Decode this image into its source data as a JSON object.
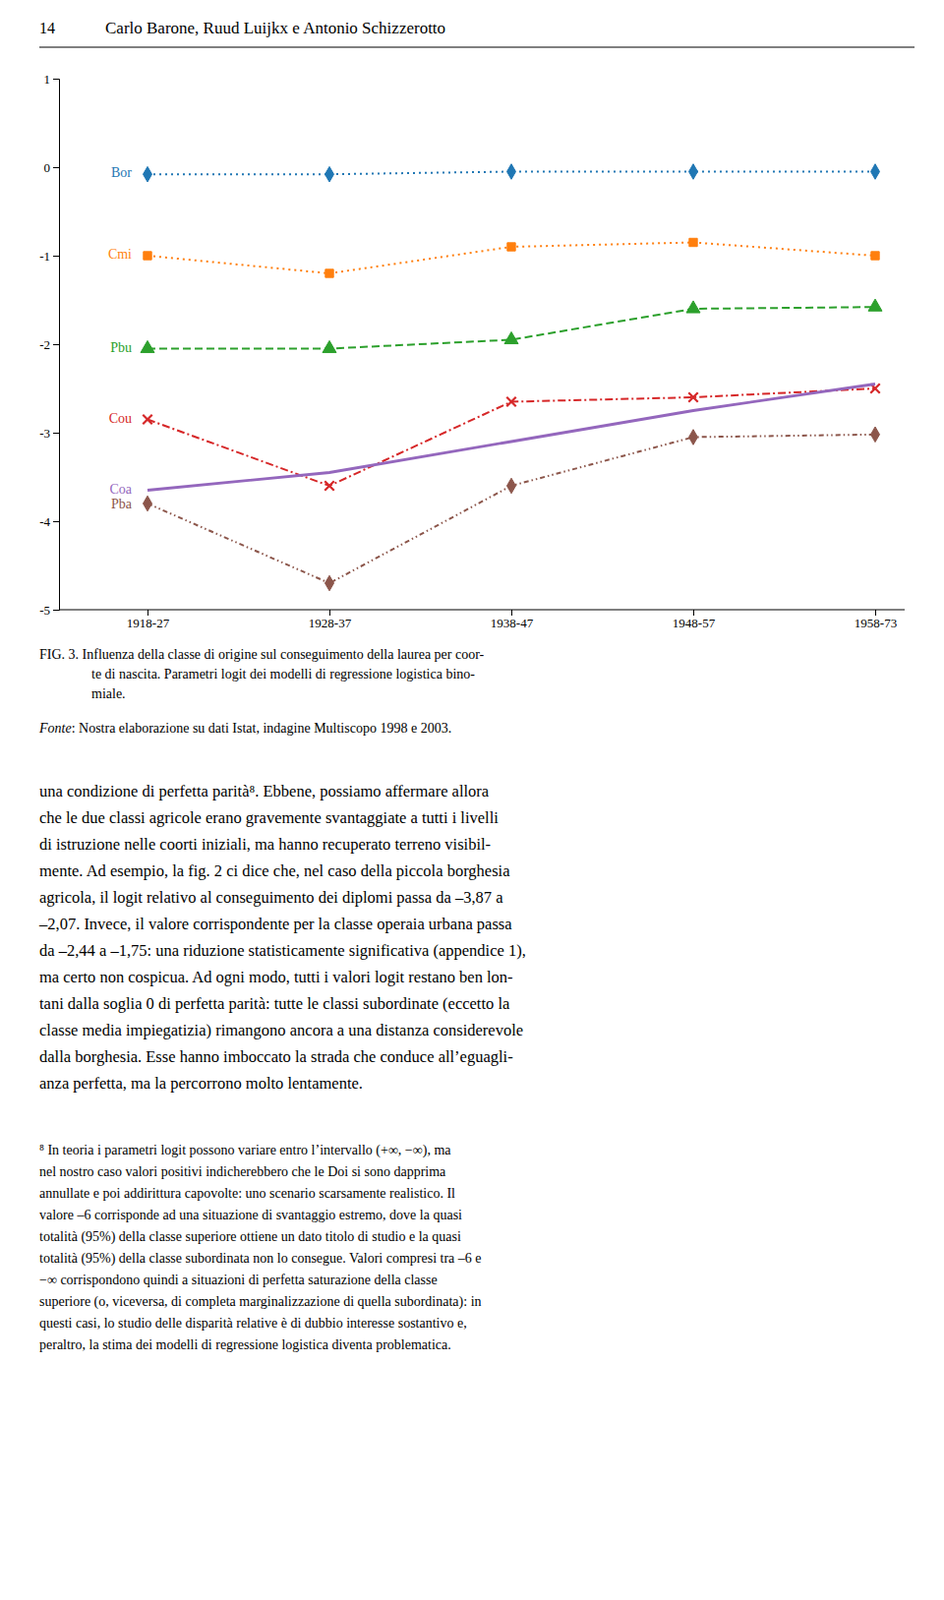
{
  "chart_data": {
    "type": "line",
    "categories": [
      "1918-27",
      "1928-37",
      "1938-47",
      "1948-57",
      "1958-73"
    ],
    "series": [
      {
        "name": "Bor",
        "values": [
          -0.08,
          -0.08,
          -0.05,
          -0.05,
          -0.05
        ],
        "marker": "diamond",
        "line_style": "dotted"
      },
      {
        "name": "Cmi",
        "values": [
          -1.0,
          -1.2,
          -0.9,
          -0.85,
          -1.0
        ],
        "marker": "square",
        "line_style": "dotted"
      },
      {
        "name": "Pbu",
        "values": [
          -2.05,
          -2.05,
          -1.95,
          -1.6,
          -1.58
        ],
        "marker": "triangle",
        "line_style": "dashed"
      },
      {
        "name": "Cou",
        "values": [
          -2.85,
          -3.6,
          -2.65,
          -2.6,
          -2.5
        ],
        "marker": "x",
        "line_style": "dashdot"
      },
      {
        "name": "Coa",
        "values": [
          -3.65,
          -3.45,
          -3.1,
          -2.75,
          -2.45
        ],
        "line_style": "solid"
      },
      {
        "name": "Pba",
        "values": [
          -3.8,
          -4.7,
          -3.6,
          -3.05,
          -3.02
        ],
        "marker": "diamond",
        "line_style": "dashdotdot"
      }
    ],
    "ylim": [
      -5,
      1
    ],
    "yticks": [
      -5,
      -4,
      -3,
      -2,
      -1,
      0,
      1
    ],
    "grid": false
  },
  "page": {
    "header_number": "14",
    "header_title": "Carlo Barone, Ruud Luijkx e Antonio Schizzerotto",
    "caption_lines": [
      "FIG. 3. Influenza della classe di origine sul conseguimento della laurea per coor-",
      "te di nascita. Parametri logit dei modelli di regressione logistica bino-",
      "miale."
    ],
    "source_italic": "Fonte",
    "source_text": ": Nostra elaborazione su dati Istat, indagine Multiscopo 1998 e 2003.",
    "body_lines": [
      "una condizione di perfetta parità⁸. Ebbene, possiamo affermare allora",
      "che le due classi agricole erano gravemente svantaggiate a tutti i livelli",
      "di istruzione nelle coorti iniziali, ma hanno recuperato terreno visibil-",
      "mente. Ad esempio, la fig. 2 ci dice che, nel caso della piccola borghesia",
      "agricola, il logit relativo al conseguimento dei diplomi passa da –3,87 a",
      "–2,07. Invece, il valore corrispondente per la classe operaia urbana passa",
      "da –2,44 a –1,75: una riduzione statisticamente significativa (appendice 1),",
      "ma certo non cospicua. Ad ogni modo, tutti i valori logit restano ben lon-",
      "tani dalla soglia 0 di perfetta parità: tutte le classi subordinate (eccetto la",
      "classe media impiegatizia) rimangono ancora a una distanza considerevole",
      "dalla borghesia. Esse hanno imboccato la strada che conduce all’eguagli-",
      "anza perfetta, ma la percorrono molto lentamente."
    ],
    "footnote_lines": [
      "⁸ In teoria i parametri logit possono variare entro l’intervallo (+∞, −∞), ma",
      "nel nostro caso valori positivi indicherebbero che le Doi si sono dapprima",
      "annullate e poi addirittura capovolte: uno scenario scarsamente realistico. Il",
      "valore –6 corrisponde ad una situazione di svantaggio estremo, dove la quasi",
      "totalità (95%) della classe superiore ottiene un dato titolo di studio e la quasi",
      "totalità (95%) della classe subordinata non lo consegue. Valori compresi tra –6 e",
      "−∞ corrispondono quindi a situazioni di perfetta saturazione della classe",
      "superiore (o, viceversa, di completa marginalizzazione di quella subordinata): in",
      "questi casi, lo studio delle disparità relative è di dubbio interesse sostantivo e,",
      "peraltro, la stima dei modelli di regressione logistica diventa problematica."
    ]
  }
}
